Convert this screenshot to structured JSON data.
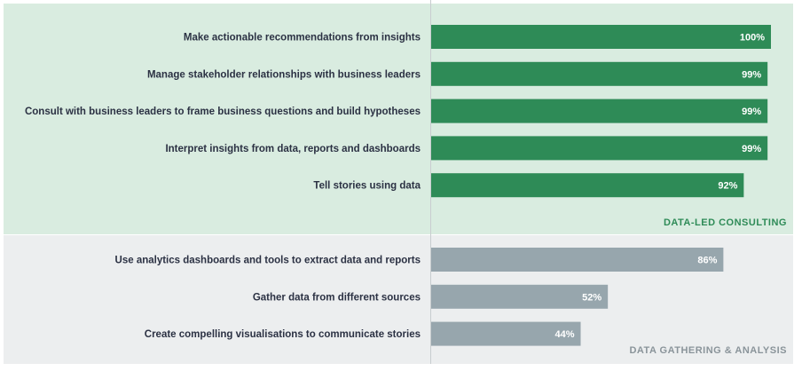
{
  "chart_data": {
    "type": "bar",
    "orientation": "horizontal",
    "xlim": [
      0,
      100
    ],
    "value_suffix": "%",
    "groups": [
      {
        "name": "DATA-LED CONSULTING",
        "color": "#2e8b57",
        "background": "#d9ece0",
        "label_color": "#2e8b57",
        "items": [
          {
            "label": "Make actionable recommendations from insights",
            "value": 100
          },
          {
            "label": "Manage stakeholder relationships with business leaders",
            "value": 99
          },
          {
            "label": "Consult with business leaders to frame business questions and build hypotheses",
            "value": 99
          },
          {
            "label": "Interpret insights from data, reports and dashboards",
            "value": 99
          },
          {
            "label": "Tell stories using data",
            "value": 92
          }
        ]
      },
      {
        "name": "DATA GATHERING & ANALYSIS",
        "color": "#97a6ad",
        "background": "#eceeef",
        "label_color": "#8a949a",
        "items": [
          {
            "label": "Use analytics dashboards and tools to extract data and reports",
            "value": 86
          },
          {
            "label": "Gather data from different sources",
            "value": 52
          },
          {
            "label": "Create compelling visualisations to communicate stories",
            "value": 44
          }
        ]
      }
    ]
  }
}
